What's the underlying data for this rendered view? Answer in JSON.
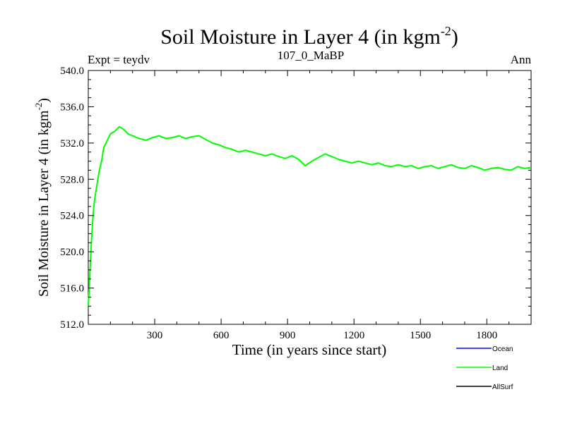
{
  "header": {
    "title_main": "Soil Moisture in Layer 4 (in kgm",
    "title_sup": "-2",
    "title_end": ")",
    "left_label": "Expt = teydv",
    "center_label": "107_0_MaBP",
    "right_label": "Ann"
  },
  "chart_data": {
    "type": "line",
    "title": "Soil Moisture in Layer 4 (in kgm-2)",
    "xlabel": "Time (in years since start)",
    "ylabel": "Soil Moisture in Layer 4 (in kgm-2)",
    "ylabel_main": "Soil Moisture in Layer 4 (in kgm",
    "ylabel_sup": "-2",
    "ylabel_end": ")",
    "xlim": [
      0,
      2000
    ],
    "ylim": [
      512.0,
      540.0
    ],
    "xticks": [
      300,
      600,
      900,
      1200,
      1500,
      1800
    ],
    "xtick_labels": [
      "300",
      "600",
      "900",
      "1200",
      "1500",
      "1800"
    ],
    "yticks": [
      512,
      516,
      520,
      524,
      528,
      532,
      536,
      540
    ],
    "ytick_labels": [
      "512.0",
      "516.0",
      "520.0",
      "524.0",
      "528.0",
      "532.0",
      "536.0",
      "540.0"
    ],
    "grid": false,
    "legend_position": "bottom-right",
    "series": [
      {
        "name": "Ocean",
        "color": "#0000ff",
        "values": []
      },
      {
        "name": "Land",
        "color": "#00ff00",
        "x": [
          0,
          5,
          10,
          15,
          20,
          25,
          30,
          40,
          50,
          60,
          70,
          80,
          90,
          100,
          120,
          140,
          160,
          180,
          200,
          230,
          260,
          290,
          320,
          350,
          380,
          410,
          440,
          470,
          500,
          530,
          560,
          590,
          620,
          650,
          680,
          710,
          740,
          770,
          800,
          830,
          860,
          890,
          920,
          950,
          980,
          1010,
          1040,
          1070,
          1100,
          1130,
          1160,
          1190,
          1220,
          1250,
          1280,
          1310,
          1340,
          1370,
          1400,
          1430,
          1460,
          1490,
          1520,
          1550,
          1580,
          1610,
          1640,
          1670,
          1700,
          1730,
          1760,
          1790,
          1820,
          1850,
          1880,
          1910,
          1940,
          1970,
          2000
        ],
        "values": [
          514.0,
          516.5,
          519.0,
          521.5,
          523.5,
          525.0,
          526.0,
          527.5,
          529.0,
          530.0,
          531.5,
          532.0,
          532.5,
          533.0,
          533.3,
          533.8,
          533.5,
          533.0,
          532.8,
          532.5,
          532.3,
          532.6,
          532.8,
          532.5,
          532.6,
          532.8,
          532.5,
          532.7,
          532.8,
          532.4,
          532.0,
          531.8,
          531.5,
          531.3,
          531.0,
          531.2,
          531.0,
          530.8,
          530.6,
          530.8,
          530.5,
          530.3,
          530.6,
          530.2,
          529.5,
          530.0,
          530.4,
          530.8,
          530.5,
          530.2,
          530.0,
          529.8,
          530.0,
          529.8,
          529.6,
          529.8,
          529.5,
          529.4,
          529.6,
          529.4,
          529.5,
          529.2,
          529.4,
          529.5,
          529.2,
          529.4,
          529.6,
          529.3,
          529.2,
          529.5,
          529.3,
          529.0,
          529.2,
          529.3,
          529.1,
          529.0,
          529.4,
          529.2,
          529.3
        ]
      },
      {
        "name": "AllSurf",
        "color": "#000000",
        "values": []
      }
    ]
  }
}
